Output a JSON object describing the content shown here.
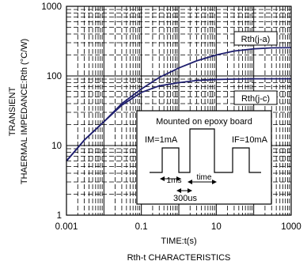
{
  "chart_data": {
    "type": "line",
    "title": "",
    "caption": "Rth-t CHARACTERISTICS",
    "xlabel": "TIME:t(s)",
    "ylabel_line1": "TRANSIENT",
    "ylabel_line2": "THAERMAL IMPEDANCE:Rth (°C/W)",
    "xscale": "log",
    "yscale": "log",
    "xlim": [
      0.001,
      1000
    ],
    "ylim": [
      1,
      1000
    ],
    "grid": true,
    "x_tick_labels": [
      "0.001",
      "0.1",
      "10",
      "1000"
    ],
    "y_tick_labels": [
      "1",
      "10",
      "100",
      "1000"
    ],
    "series": [
      {
        "name": "Rth(j-a)",
        "x": [
          0.001,
          0.003,
          0.01,
          0.03,
          0.1,
          0.3,
          1,
          3,
          10,
          30,
          100,
          300,
          1000
        ],
        "y": [
          6,
          12,
          22,
          40,
          65,
          95,
          130,
          165,
          200,
          228,
          245,
          253,
          255
        ]
      },
      {
        "name": "Rth(j-c)",
        "x": [
          0.001,
          0.003,
          0.01,
          0.03,
          0.1,
          0.3,
          1,
          3,
          10,
          30,
          100,
          300,
          1000
        ],
        "y": [
          6,
          12,
          22,
          38,
          58,
          72,
          80,
          86,
          89,
          90,
          91,
          91,
          91
        ]
      }
    ],
    "inset": {
      "title": "Mounted on epoxy board",
      "left_label": "IM=1mA",
      "right_label": "IF=10mA",
      "pulse_label": "1ms",
      "time_label": "time",
      "period_label": "300us"
    },
    "colors": {
      "curve": "#1f1f6e",
      "grid": "#000000"
    }
  }
}
